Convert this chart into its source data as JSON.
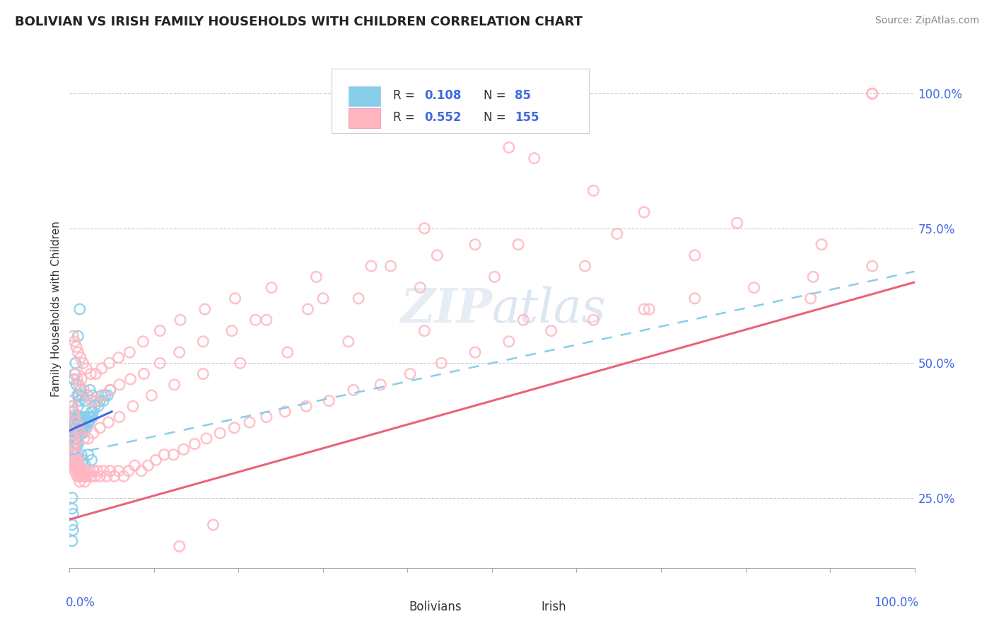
{
  "title": "BOLIVIAN VS IRISH FAMILY HOUSEHOLDS WITH CHILDREN CORRELATION CHART",
  "source": "Source: ZipAtlas.com",
  "ylabel": "Family Households with Children",
  "ytick_labels": [
    "25.0%",
    "50.0%",
    "75.0%",
    "100.0%"
  ],
  "ytick_values": [
    0.25,
    0.5,
    0.75,
    1.0
  ],
  "xlim": [
    0.0,
    1.0
  ],
  "ylim": [
    0.12,
    1.08
  ],
  "legend_bolivians_R": "0.108",
  "legend_bolivians_N": "85",
  "legend_irish_R": "0.552",
  "legend_irish_N": "155",
  "color_bolivian": "#87CEEB",
  "color_irish": "#FFB6C1",
  "color_blue_text": "#4169E1",
  "color_irish_line": "#E8647A",
  "color_bolivian_line": "#4169E1",
  "color_dashed_line": "#87CEEB",
  "watermark_text": "ZIPatlas",
  "bolivian_scatter_x": [
    0.003,
    0.003,
    0.003,
    0.004,
    0.004,
    0.004,
    0.005,
    0.005,
    0.005,
    0.006,
    0.006,
    0.006,
    0.007,
    0.007,
    0.007,
    0.008,
    0.008,
    0.008,
    0.009,
    0.009,
    0.009,
    0.01,
    0.01,
    0.01,
    0.011,
    0.011,
    0.012,
    0.012,
    0.013,
    0.013,
    0.014,
    0.014,
    0.015,
    0.015,
    0.016,
    0.016,
    0.017,
    0.018,
    0.019,
    0.02,
    0.021,
    0.022,
    0.023,
    0.024,
    0.025,
    0.026,
    0.027,
    0.028,
    0.03,
    0.032,
    0.034,
    0.036,
    0.038,
    0.04,
    0.042,
    0.045,
    0.048,
    0.005,
    0.006,
    0.007,
    0.008,
    0.009,
    0.01,
    0.011,
    0.012,
    0.013,
    0.015,
    0.018,
    0.021,
    0.024,
    0.027,
    0.003,
    0.004,
    0.005,
    0.006,
    0.007,
    0.008,
    0.009,
    0.01,
    0.012,
    0.014,
    0.016,
    0.019,
    0.022,
    0.026
  ],
  "bolivian_scatter_y": [
    0.38,
    0.4,
    0.42,
    0.37,
    0.39,
    0.41,
    0.36,
    0.38,
    0.4,
    0.35,
    0.37,
    0.39,
    0.36,
    0.38,
    0.4,
    0.35,
    0.37,
    0.39,
    0.36,
    0.38,
    0.4,
    0.35,
    0.37,
    0.39,
    0.38,
    0.4,
    0.37,
    0.39,
    0.38,
    0.4,
    0.37,
    0.39,
    0.38,
    0.4,
    0.37,
    0.39,
    0.38,
    0.39,
    0.4,
    0.38,
    0.39,
    0.4,
    0.39,
    0.4,
    0.4,
    0.41,
    0.4,
    0.41,
    0.42,
    0.43,
    0.42,
    0.43,
    0.44,
    0.43,
    0.44,
    0.44,
    0.45,
    0.47,
    0.48,
    0.5,
    0.46,
    0.44,
    0.42,
    0.44,
    0.43,
    0.45,
    0.44,
    0.43,
    0.44,
    0.45,
    0.44,
    0.33,
    0.32,
    0.31,
    0.33,
    0.32,
    0.31,
    0.33,
    0.32,
    0.31,
    0.33,
    0.32,
    0.31,
    0.33,
    0.32
  ],
  "bolivian_scatter_x_outliers": [
    0.012,
    0.01,
    0.003,
    0.003,
    0.003,
    0.004,
    0.004,
    0.003
  ],
  "bolivian_scatter_y_outliers": [
    0.6,
    0.55,
    0.25,
    0.23,
    0.2,
    0.22,
    0.19,
    0.17
  ],
  "irish_scatter_x": [
    0.003,
    0.003,
    0.003,
    0.004,
    0.004,
    0.004,
    0.005,
    0.005,
    0.005,
    0.006,
    0.006,
    0.006,
    0.007,
    0.007,
    0.008,
    0.008,
    0.009,
    0.009,
    0.01,
    0.01,
    0.011,
    0.011,
    0.012,
    0.012,
    0.013,
    0.014,
    0.015,
    0.016,
    0.017,
    0.018,
    0.019,
    0.02,
    0.022,
    0.024,
    0.026,
    0.028,
    0.03,
    0.033,
    0.036,
    0.04,
    0.044,
    0.048,
    0.053,
    0.058,
    0.064,
    0.07,
    0.077,
    0.085,
    0.093,
    0.102,
    0.112,
    0.123,
    0.135,
    0.148,
    0.162,
    0.178,
    0.195,
    0.213,
    0.233,
    0.255,
    0.28,
    0.307,
    0.336,
    0.368,
    0.403,
    0.44,
    0.48,
    0.52,
    0.57,
    0.62,
    0.68,
    0.74,
    0.81,
    0.88,
    0.95,
    0.007,
    0.009,
    0.011,
    0.014,
    0.017,
    0.021,
    0.026,
    0.032,
    0.039,
    0.048,
    0.059,
    0.072,
    0.088,
    0.107,
    0.13,
    0.158,
    0.192,
    0.233,
    0.282,
    0.342,
    0.415,
    0.503,
    0.61,
    0.74,
    0.89,
    0.004,
    0.006,
    0.008,
    0.01,
    0.013,
    0.016,
    0.02,
    0.025,
    0.031,
    0.038,
    0.047,
    0.058,
    0.071,
    0.087,
    0.107,
    0.131,
    0.16,
    0.196,
    0.239,
    0.292,
    0.357,
    0.435,
    0.531,
    0.648,
    0.79,
    0.003,
    0.004,
    0.005,
    0.006,
    0.008,
    0.01,
    0.013,
    0.017,
    0.022,
    0.028,
    0.036,
    0.046,
    0.059,
    0.075,
    0.097,
    0.124,
    0.158,
    0.202,
    0.258,
    0.33,
    0.42,
    0.537,
    0.686,
    0.877,
    0.95,
    0.95
  ],
  "irish_scatter_y": [
    0.37,
    0.35,
    0.33,
    0.36,
    0.34,
    0.32,
    0.35,
    0.33,
    0.31,
    0.34,
    0.32,
    0.3,
    0.33,
    0.31,
    0.32,
    0.3,
    0.31,
    0.29,
    0.32,
    0.3,
    0.31,
    0.29,
    0.3,
    0.28,
    0.29,
    0.3,
    0.29,
    0.3,
    0.29,
    0.28,
    0.29,
    0.3,
    0.29,
    0.3,
    0.29,
    0.3,
    0.29,
    0.3,
    0.29,
    0.3,
    0.29,
    0.3,
    0.29,
    0.3,
    0.29,
    0.3,
    0.31,
    0.3,
    0.31,
    0.32,
    0.33,
    0.33,
    0.34,
    0.35,
    0.36,
    0.37,
    0.38,
    0.39,
    0.4,
    0.41,
    0.42,
    0.43,
    0.45,
    0.46,
    0.48,
    0.5,
    0.52,
    0.54,
    0.56,
    0.58,
    0.6,
    0.62,
    0.64,
    0.66,
    0.68,
    0.48,
    0.47,
    0.46,
    0.47,
    0.45,
    0.44,
    0.43,
    0.43,
    0.44,
    0.45,
    0.46,
    0.47,
    0.48,
    0.5,
    0.52,
    0.54,
    0.56,
    0.58,
    0.6,
    0.62,
    0.64,
    0.66,
    0.68,
    0.7,
    0.72,
    0.55,
    0.54,
    0.53,
    0.52,
    0.51,
    0.5,
    0.49,
    0.48,
    0.48,
    0.49,
    0.5,
    0.51,
    0.52,
    0.54,
    0.56,
    0.58,
    0.6,
    0.62,
    0.64,
    0.66,
    0.68,
    0.7,
    0.72,
    0.74,
    0.76,
    0.43,
    0.42,
    0.41,
    0.4,
    0.39,
    0.38,
    0.37,
    0.36,
    0.36,
    0.37,
    0.38,
    0.39,
    0.4,
    0.42,
    0.44,
    0.46,
    0.48,
    0.5,
    0.52,
    0.54,
    0.56,
    0.58,
    0.6,
    0.62,
    1.0,
    1.0
  ],
  "irish_scatter_x_outliers": [
    0.62,
    0.68,
    0.55,
    0.48,
    0.38,
    0.3,
    0.22,
    0.17,
    0.13,
    0.42,
    0.52
  ],
  "irish_scatter_y_outliers": [
    0.82,
    0.78,
    0.88,
    0.72,
    0.68,
    0.62,
    0.58,
    0.2,
    0.16,
    0.75,
    0.9
  ],
  "bolivian_line_x": [
    0.0,
    0.05
  ],
  "bolivian_line_y": [
    0.375,
    0.41
  ],
  "irish_line_x": [
    0.0,
    1.0
  ],
  "irish_line_y": [
    0.21,
    0.65
  ],
  "dashed_line_x": [
    0.0,
    1.0
  ],
  "dashed_line_y": [
    0.33,
    0.67
  ]
}
